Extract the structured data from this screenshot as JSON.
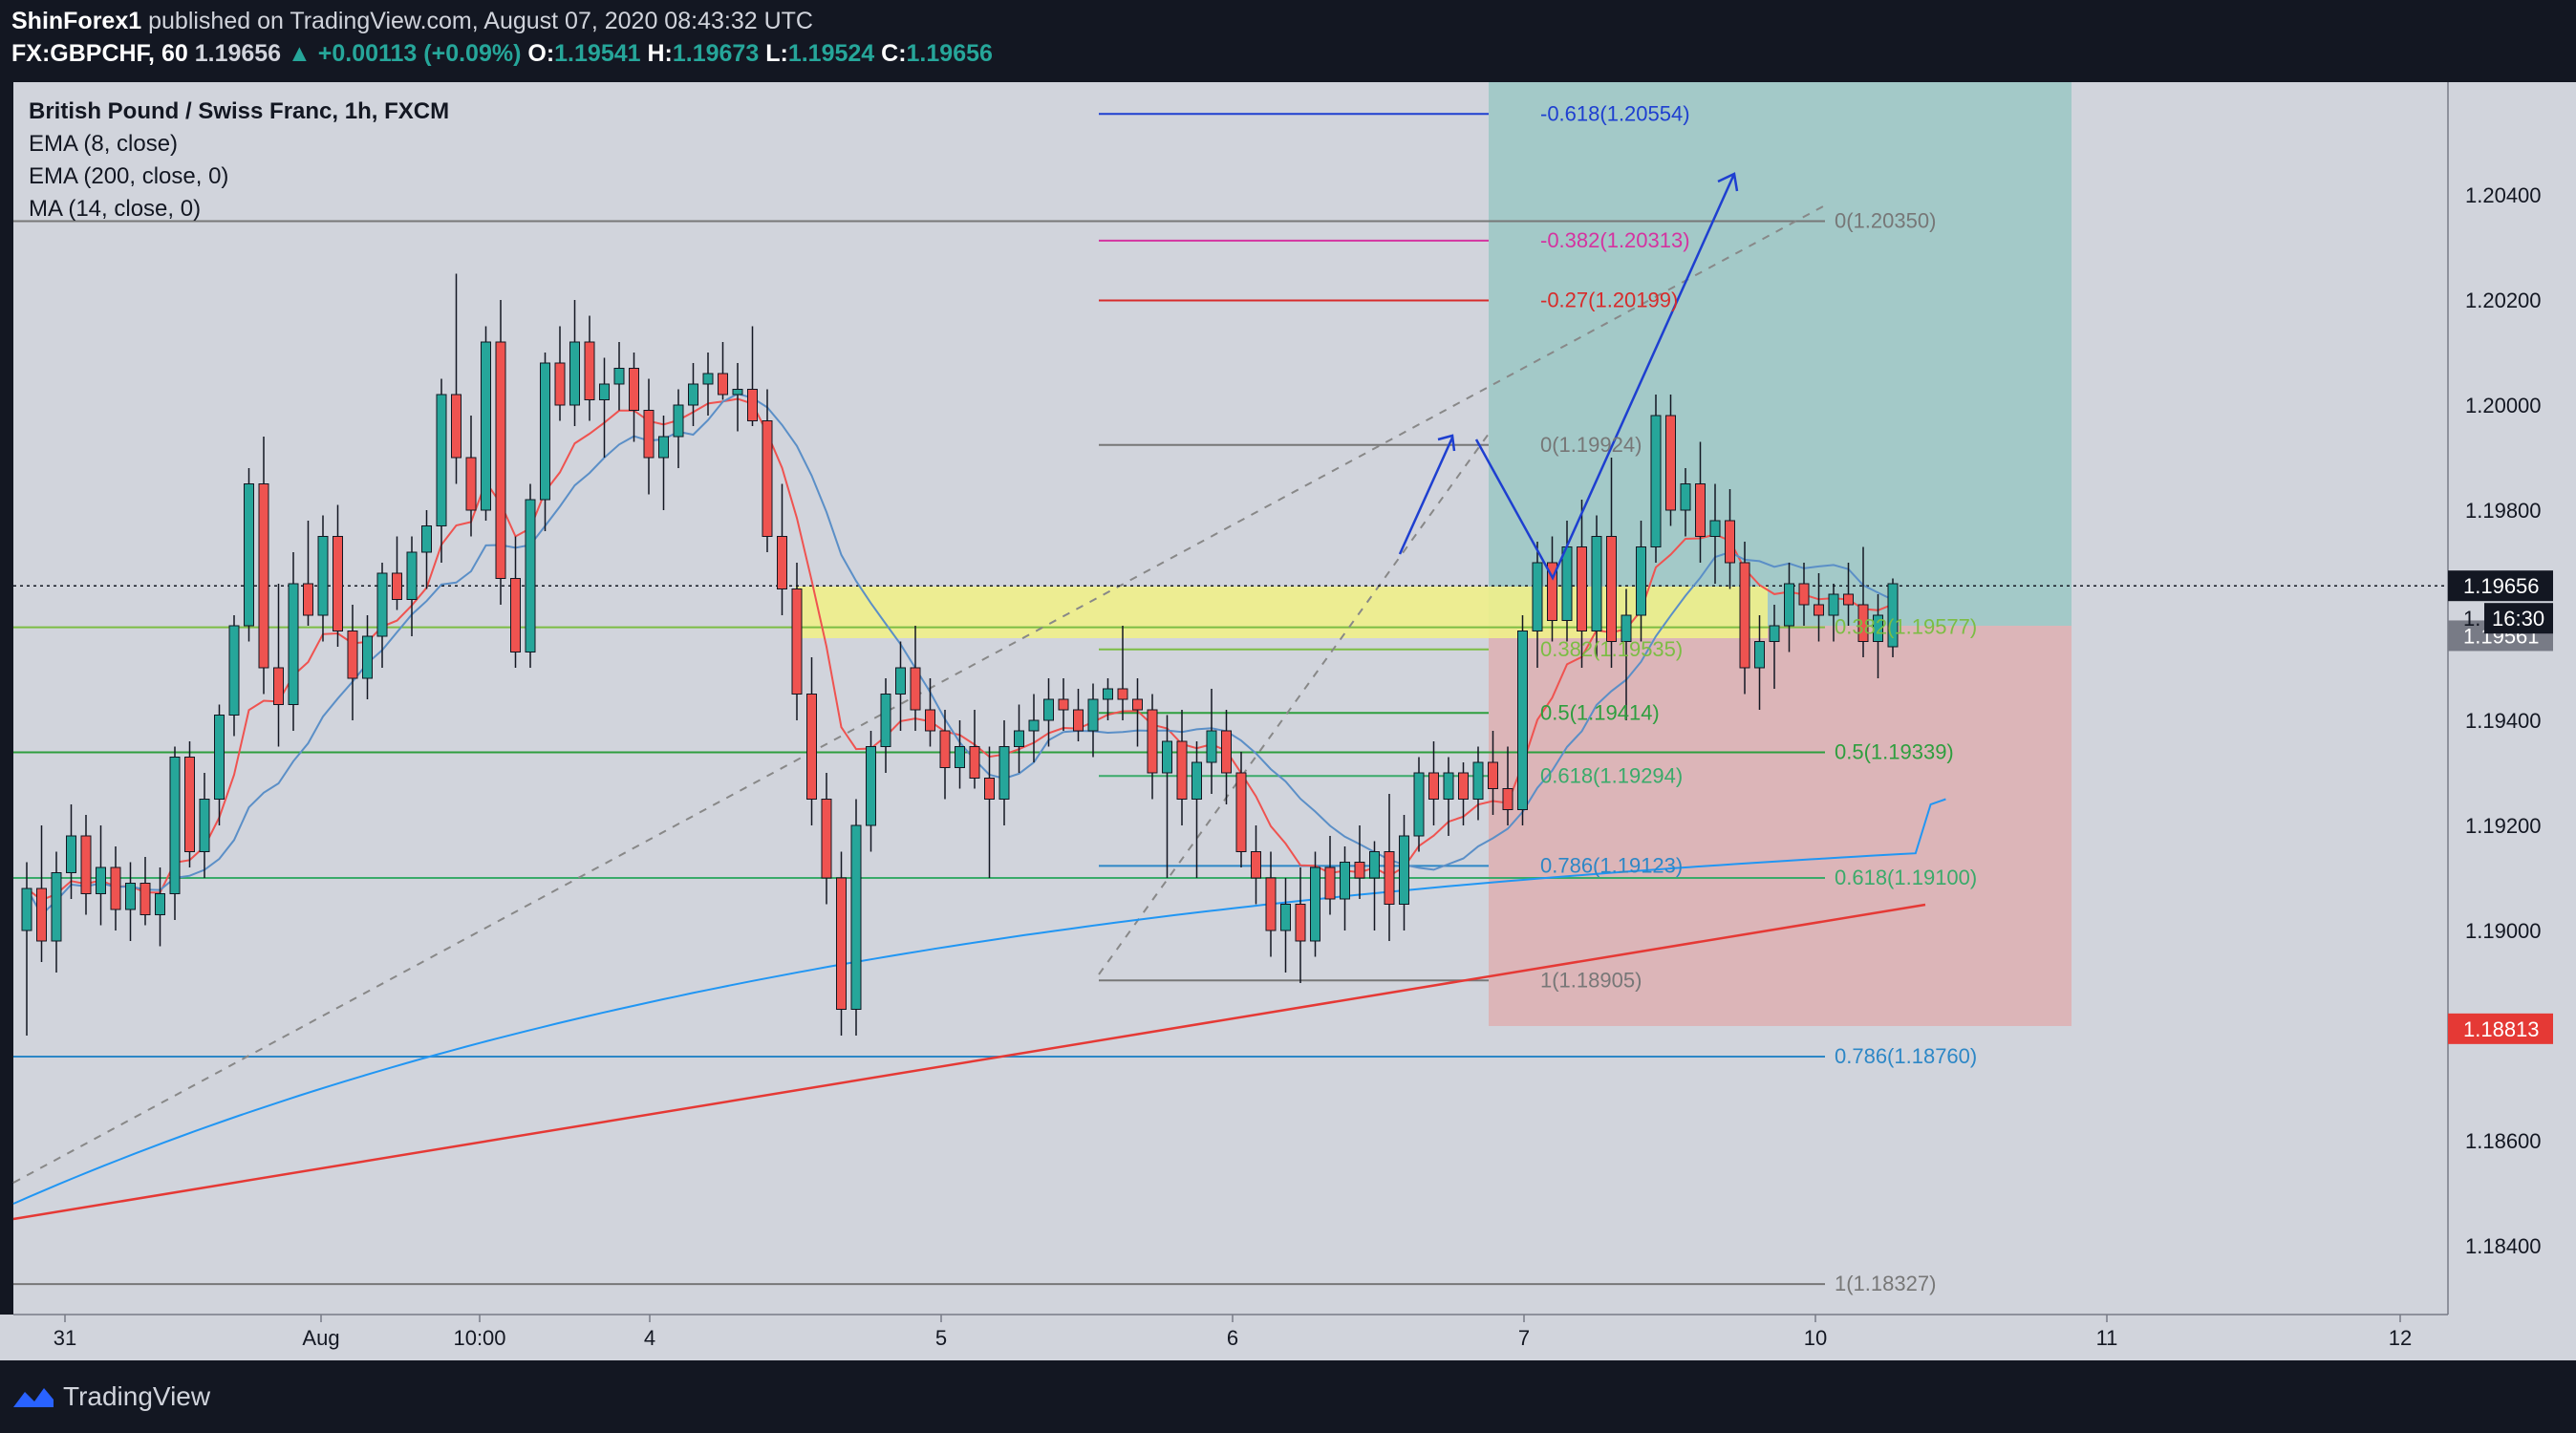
{
  "header": {
    "author": "ShinForex1",
    "published_text": "published on TradingView.com, August 07, 2020 08:43:32 UTC",
    "symbol": "FX:GBPCHF, 60",
    "last": "1.19656",
    "change": "+0.00113 (+0.09%)",
    "open_label": "O:",
    "open": "1.19541",
    "high_label": "H:",
    "high": "1.19673",
    "low_label": "L:",
    "low": "1.19524",
    "close_label": "C:",
    "close": "1.19656"
  },
  "legend": {
    "title": "British Pound / Swiss Franc, 1h, FXCM",
    "ema8": "EMA (8, close)",
    "ema200": "EMA (200, close, 0)",
    "ma14": "MA (14, close, 0)"
  },
  "footer": {
    "brand": "TradingView"
  },
  "colors": {
    "background": "#d1d4dc",
    "bull": "#26a69a",
    "bear": "#ef5350",
    "ema8": "#ef5350",
    "ema200": "#2196f3",
    "ma14": "#5b8fc7",
    "target_zone": "#a3c9c8",
    "stop_zone": "#dcb5b8",
    "support_zone": "#f0f08a"
  },
  "chart_data": {
    "type": "candlestick",
    "title": "British Pound / Swiss Franc, 1h, FXCM",
    "x_ticks": [
      "31",
      "Aug",
      "10:00",
      "4",
      "5",
      "6",
      "7",
      "10",
      "11",
      "12"
    ],
    "y_ticks": [
      "1.20400",
      "1.20200",
      "1.20000",
      "1.19800",
      "1.19400",
      "1.19200",
      "1.19000",
      "1.18600",
      "1.18400"
    ],
    "ylim": [
      1.1812,
      1.2066
    ],
    "price_labels": {
      "current": "1.19656",
      "countdown": "16:30",
      "position_entry": "1.19561",
      "stop": "1.18813",
      "partial_hidden": "1."
    },
    "fib_levels": [
      {
        "label": "-0.618(1.20554)",
        "price": 1.20554,
        "color": "#1e3fd0"
      },
      {
        "label": "0(1.20350)",
        "price": 1.2035,
        "color": "#777777"
      },
      {
        "label": "-0.382(1.20313)",
        "price": 1.20313,
        "color": "#d433a0"
      },
      {
        "label": "-0.27(1.20199)",
        "price": 1.20199,
        "color": "#d72b2b"
      },
      {
        "label": "0(1.19924)",
        "price": 1.19924,
        "color": "#777777"
      },
      {
        "label": "0.382(1.19577)",
        "price": 1.19577,
        "color": "#7cbd44"
      },
      {
        "label": "0.382(1.19535)",
        "price": 1.19535,
        "color": "#7cbd44"
      },
      {
        "label": "0.5(1.19414)",
        "price": 1.19414,
        "color": "#2e9e3e"
      },
      {
        "label": "0.5(1.19339)",
        "price": 1.19339,
        "color": "#2e9e3e"
      },
      {
        "label": "0.618(1.19294)",
        "price": 1.19294,
        "color": "#3aaa6a"
      },
      {
        "label": "0.786(1.19123)",
        "price": 1.19123,
        "color": "#2d87c6"
      },
      {
        "label": "0.618(1.19100)",
        "price": 1.191,
        "color": "#3aaa6a"
      },
      {
        "label": "1(1.18905)",
        "price": 1.18905,
        "color": "#777777"
      },
      {
        "label": "0.786(1.18760)",
        "price": 1.1876,
        "color": "#2d87c6"
      },
      {
        "label": "1(1.18327)",
        "price": 1.18327,
        "color": "#777777"
      }
    ],
    "candles": [
      [
        1.19,
        1.1913,
        1.188,
        1.1908
      ],
      [
        1.1908,
        1.192,
        1.1894,
        1.1898
      ],
      [
        1.1898,
        1.1915,
        1.1892,
        1.1911
      ],
      [
        1.1911,
        1.1924,
        1.1906,
        1.1918
      ],
      [
        1.1918,
        1.1922,
        1.1903,
        1.1907
      ],
      [
        1.1907,
        1.192,
        1.1901,
        1.1912
      ],
      [
        1.1912,
        1.1916,
        1.19,
        1.1904
      ],
      [
        1.1904,
        1.1913,
        1.1898,
        1.1909
      ],
      [
        1.1909,
        1.1914,
        1.1901,
        1.1903
      ],
      [
        1.1903,
        1.1912,
        1.1897,
        1.1907
      ],
      [
        1.1907,
        1.1935,
        1.1902,
        1.1933
      ],
      [
        1.1933,
        1.1936,
        1.1912,
        1.1915
      ],
      [
        1.1915,
        1.193,
        1.191,
        1.1925
      ],
      [
        1.1925,
        1.1943,
        1.192,
        1.1941
      ],
      [
        1.1941,
        1.196,
        1.1937,
        1.1958
      ],
      [
        1.1958,
        1.1988,
        1.1955,
        1.1985
      ],
      [
        1.1985,
        1.1994,
        1.1945,
        1.195
      ],
      [
        1.195,
        1.1966,
        1.1935,
        1.1943
      ],
      [
        1.1943,
        1.1972,
        1.1938,
        1.1966
      ],
      [
        1.1966,
        1.1978,
        1.1958,
        1.196
      ],
      [
        1.196,
        1.1979,
        1.1955,
        1.1975
      ],
      [
        1.1975,
        1.1981,
        1.1954,
        1.1957
      ],
      [
        1.1957,
        1.1962,
        1.194,
        1.1948
      ],
      [
        1.1948,
        1.196,
        1.1944,
        1.1956
      ],
      [
        1.1956,
        1.197,
        1.195,
        1.1968
      ],
      [
        1.1968,
        1.1975,
        1.1961,
        1.1963
      ],
      [
        1.1963,
        1.1975,
        1.1956,
        1.1972
      ],
      [
        1.1972,
        1.198,
        1.1965,
        1.1977
      ],
      [
        1.1977,
        1.2005,
        1.197,
        1.2002
      ],
      [
        1.2002,
        1.2025,
        1.1985,
        1.199
      ],
      [
        1.199,
        1.1998,
        1.1975,
        1.198
      ],
      [
        1.198,
        1.2015,
        1.1978,
        1.2012
      ],
      [
        1.2012,
        1.202,
        1.1962,
        1.1967
      ],
      [
        1.1967,
        1.1975,
        1.195,
        1.1953
      ],
      [
        1.1953,
        1.1985,
        1.195,
        1.1982
      ],
      [
        1.1982,
        1.201,
        1.1976,
        1.2008
      ],
      [
        1.2008,
        1.2015,
        1.1997,
        1.2
      ],
      [
        1.2,
        1.202,
        1.1996,
        1.2012
      ],
      [
        1.2012,
        1.2017,
        1.1997,
        1.2001
      ],
      [
        1.2001,
        1.2009,
        1.199,
        1.2004
      ],
      [
        1.2004,
        1.2012,
        1.1999,
        1.2007
      ],
      [
        1.2007,
        1.201,
        1.1993,
        1.1999
      ],
      [
        1.1999,
        1.2005,
        1.1983,
        1.199
      ],
      [
        1.199,
        1.1998,
        1.198,
        1.1994
      ],
      [
        1.1994,
        1.2003,
        1.1988,
        1.2
      ],
      [
        1.2,
        1.2008,
        1.1996,
        1.2004
      ],
      [
        1.2004,
        1.201,
        1.1998,
        1.2006
      ],
      [
        1.2006,
        1.2012,
        1.2001,
        1.2002
      ],
      [
        1.2002,
        1.2008,
        1.1995,
        1.2003
      ],
      [
        1.2003,
        1.2015,
        1.1996,
        1.1997
      ],
      [
        1.1997,
        1.2003,
        1.1972,
        1.1975
      ],
      [
        1.1975,
        1.1985,
        1.196,
        1.1965
      ],
      [
        1.1965,
        1.197,
        1.194,
        1.1945
      ],
      [
        1.1945,
        1.1952,
        1.192,
        1.1925
      ],
      [
        1.1925,
        1.193,
        1.1905,
        1.191
      ],
      [
        1.191,
        1.1915,
        1.188,
        1.1885
      ],
      [
        1.1885,
        1.1925,
        1.188,
        1.192
      ],
      [
        1.192,
        1.1938,
        1.1915,
        1.1935
      ],
      [
        1.1935,
        1.1948,
        1.193,
        1.1945
      ],
      [
        1.1945,
        1.1955,
        1.1938,
        1.195
      ],
      [
        1.195,
        1.1958,
        1.1938,
        1.1942
      ],
      [
        1.1942,
        1.1948,
        1.1935,
        1.1938
      ],
      [
        1.1938,
        1.1942,
        1.1925,
        1.1931
      ],
      [
        1.1931,
        1.194,
        1.1927,
        1.1935
      ],
      [
        1.1935,
        1.1942,
        1.1927,
        1.1929
      ],
      [
        1.1929,
        1.1935,
        1.191,
        1.1925
      ],
      [
        1.1925,
        1.194,
        1.192,
        1.1935
      ],
      [
        1.1935,
        1.1943,
        1.193,
        1.1938
      ],
      [
        1.1938,
        1.1945,
        1.1932,
        1.194
      ],
      [
        1.194,
        1.1948,
        1.1935,
        1.1944
      ],
      [
        1.1944,
        1.1948,
        1.1938,
        1.1942
      ],
      [
        1.1942,
        1.1946,
        1.1936,
        1.1938
      ],
      [
        1.1938,
        1.1947,
        1.1933,
        1.1944
      ],
      [
        1.1944,
        1.1948,
        1.194,
        1.1946
      ],
      [
        1.1946,
        1.1958,
        1.194,
        1.1944
      ],
      [
        1.1944,
        1.1948,
        1.1935,
        1.1942
      ],
      [
        1.1942,
        1.1945,
        1.1925,
        1.193
      ],
      [
        1.193,
        1.1941,
        1.191,
        1.1936
      ],
      [
        1.1936,
        1.1942,
        1.192,
        1.1925
      ],
      [
        1.1925,
        1.1936,
        1.191,
        1.1932
      ],
      [
        1.1932,
        1.1946,
        1.1926,
        1.1938
      ],
      [
        1.1938,
        1.1942,
        1.1924,
        1.193
      ],
      [
        1.193,
        1.1934,
        1.1912,
        1.1915
      ],
      [
        1.1915,
        1.192,
        1.1905,
        1.191
      ],
      [
        1.191,
        1.1915,
        1.1895,
        1.19
      ],
      [
        1.19,
        1.191,
        1.1892,
        1.1905
      ],
      [
        1.1905,
        1.1912,
        1.189,
        1.1898
      ],
      [
        1.1898,
        1.1915,
        1.1895,
        1.1912
      ],
      [
        1.1912,
        1.1918,
        1.1903,
        1.1906
      ],
      [
        1.1906,
        1.1916,
        1.19,
        1.1913
      ],
      [
        1.1913,
        1.192,
        1.1906,
        1.191
      ],
      [
        1.191,
        1.1917,
        1.19,
        1.1915
      ],
      [
        1.1915,
        1.1926,
        1.1898,
        1.1905
      ],
      [
        1.1905,
        1.1922,
        1.19,
        1.1918
      ],
      [
        1.1918,
        1.1933,
        1.1915,
        1.193
      ],
      [
        1.193,
        1.1936,
        1.192,
        1.1925
      ],
      [
        1.1925,
        1.1933,
        1.1918,
        1.193
      ],
      [
        1.193,
        1.1932,
        1.192,
        1.1925
      ],
      [
        1.1925,
        1.1935,
        1.1921,
        1.1932
      ],
      [
        1.1932,
        1.1938,
        1.1922,
        1.1927
      ],
      [
        1.1927,
        1.1935,
        1.192,
        1.1923
      ],
      [
        1.1923,
        1.196,
        1.192,
        1.1957
      ],
      [
        1.1957,
        1.1974,
        1.195,
        1.197
      ],
      [
        1.197,
        1.1975,
        1.1955,
        1.1959
      ],
      [
        1.1959,
        1.1978,
        1.1955,
        1.1973
      ],
      [
        1.1973,
        1.1982,
        1.195,
        1.1957
      ],
      [
        1.1957,
        1.1979,
        1.1952,
        1.1975
      ],
      [
        1.1975,
        1.199,
        1.195,
        1.1955
      ],
      [
        1.1955,
        1.1965,
        1.194,
        1.196
      ],
      [
        1.196,
        1.1978,
        1.1955,
        1.1973
      ],
      [
        1.1973,
        1.2002,
        1.197,
        1.1998
      ],
      [
        1.1998,
        1.2002,
        1.1977,
        1.198
      ],
      [
        1.198,
        1.1988,
        1.1975,
        1.1985
      ],
      [
        1.1985,
        1.1993,
        1.197,
        1.1975
      ],
      [
        1.1975,
        1.1985,
        1.1966,
        1.1978
      ],
      [
        1.1978,
        1.1984,
        1.1965,
        1.197
      ],
      [
        1.197,
        1.1974,
        1.1945,
        1.195
      ],
      [
        1.195,
        1.196,
        1.1942,
        1.1955
      ],
      [
        1.1955,
        1.1962,
        1.1946,
        1.1958
      ],
      [
        1.1958,
        1.197,
        1.1953,
        1.1966
      ],
      [
        1.1966,
        1.197,
        1.1958,
        1.1962
      ],
      [
        1.1962,
        1.1968,
        1.1955,
        1.196
      ],
      [
        1.196,
        1.1966,
        1.1955,
        1.1964
      ],
      [
        1.1964,
        1.197,
        1.1958,
        1.1962
      ],
      [
        1.1962,
        1.1973,
        1.1952,
        1.1955
      ],
      [
        1.1955,
        1.1964,
        1.1948,
        1.196
      ],
      [
        1.1954,
        1.1967,
        1.1952,
        1.1966
      ]
    ]
  }
}
